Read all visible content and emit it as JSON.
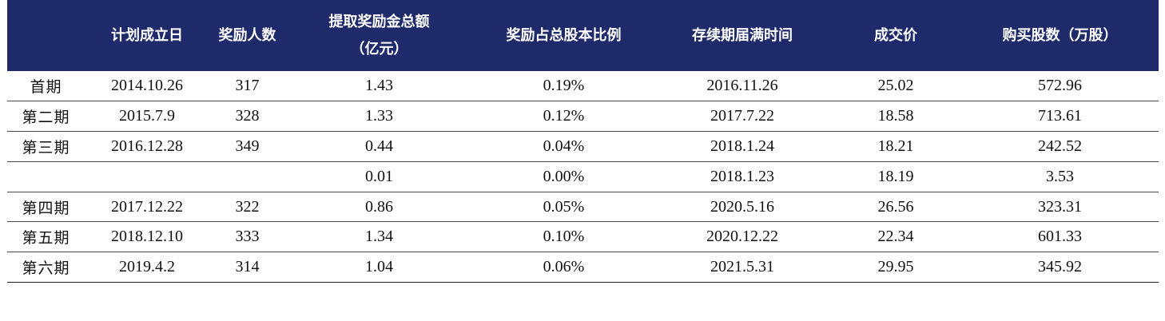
{
  "table": {
    "headers": [
      {
        "lines": [
          ""
        ]
      },
      {
        "lines": [
          "计划成立日"
        ]
      },
      {
        "lines": [
          "奖励人数"
        ]
      },
      {
        "lines": [
          "提取奖励金总额",
          "（亿元）"
        ]
      },
      {
        "lines": [
          "奖励占总股本比例"
        ]
      },
      {
        "lines": [
          "存续期届满时间"
        ]
      },
      {
        "lines": [
          "成交价"
        ]
      },
      {
        "lines": [
          "购买股数（万股）"
        ]
      }
    ],
    "rows": [
      [
        "首期",
        "2014.10.26",
        "317",
        "1.43",
        "0.19%",
        "2016.11.26",
        "25.02",
        "572.96"
      ],
      [
        "第二期",
        "2015.7.9",
        "328",
        "1.33",
        "0.12%",
        "2017.7.22",
        "18.58",
        "713.61"
      ],
      [
        "第三期",
        "2016.12.28",
        "349",
        "0.44",
        "0.04%",
        "2018.1.24",
        "18.21",
        "242.52"
      ],
      [
        "",
        "",
        "",
        "0.01",
        "0.00%",
        "2018.1.23",
        "18.19",
        "3.53"
      ],
      [
        "第四期",
        "2017.12.22",
        "322",
        "0.86",
        "0.05%",
        "2020.5.16",
        "26.56",
        "323.31"
      ],
      [
        "第五期",
        "2018.12.10",
        "333",
        "1.34",
        "0.10%",
        "2020.12.22",
        "22.34",
        "601.33"
      ],
      [
        "第六期",
        "2019.4.2",
        "314",
        "1.04",
        "0.06%",
        "2021.5.31",
        "29.95",
        "345.92"
      ]
    ]
  }
}
